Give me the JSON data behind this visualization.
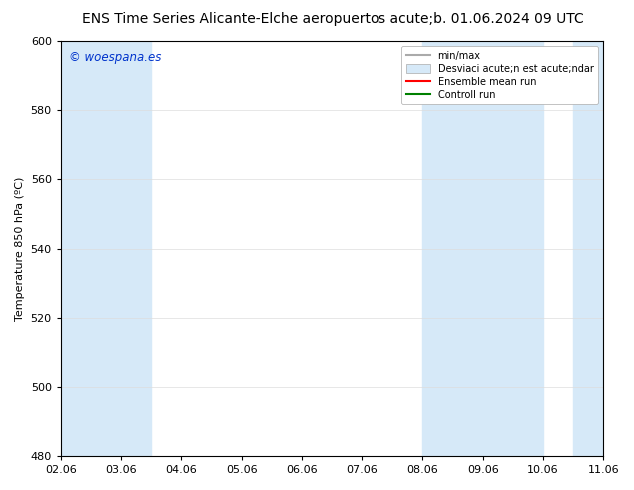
{
  "title_left": "ENS Time Series Alicante-Elche aeropuerto",
  "title_right": "s acute;b. 01.06.2024 09 UTC",
  "ylabel": "Temperature 850 hPa (ºC)",
  "xlabel": "",
  "xtick_labels": [
    "02.06",
    "03.06",
    "04.06",
    "05.06",
    "06.06",
    "07.06",
    "08.06",
    "09.06",
    "10.06",
    "11.06"
  ],
  "ylim": [
    480,
    600
  ],
  "yticks": [
    480,
    500,
    520,
    540,
    560,
    580,
    600
  ],
  "xlim": [
    0,
    9
  ],
  "background_color": "#ffffff",
  "plot_bg_color": "#ffffff",
  "watermark": "© woespana.es",
  "watermark_color": "#0033cc",
  "shaded_bands": [
    {
      "x_start": 0.0,
      "x_end": 0.5,
      "color": "#d6e9f8"
    },
    {
      "x_start": 0.5,
      "x_end": 1.5,
      "color": "#d6e9f8"
    },
    {
      "x_start": 6.0,
      "x_end": 7.0,
      "color": "#d6e9f8"
    },
    {
      "x_start": 7.0,
      "x_end": 8.0,
      "color": "#d6e9f8"
    },
    {
      "x_start": 8.5,
      "x_end": 9.0,
      "color": "#d6e9f8"
    }
  ],
  "legend_label_1": "min/max",
  "legend_label_2": "Desviaci acute;n est acute;ndar",
  "legend_label_3": "Ensemble mean run",
  "legend_label_4": "Controll run",
  "legend_color_1": "#aaaaaa",
  "legend_color_2": "#d6e9f8",
  "legend_color_3": "#ff0000",
  "legend_color_4": "#008000",
  "title_fontsize": 10,
  "axis_fontsize": 8,
  "tick_fontsize": 8,
  "legend_fontsize": 7
}
